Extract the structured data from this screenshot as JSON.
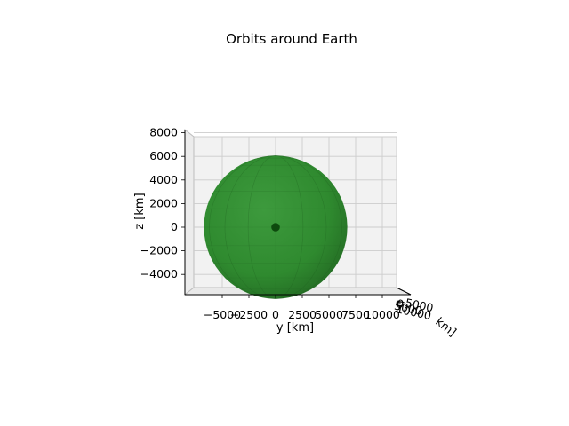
{
  "chart_data": {
    "type": "3d-surface",
    "title": "Orbits around Earth",
    "xlabel": "x [km]",
    "xlabel_visible": "km]",
    "ylabel": "y [km]",
    "zlabel": "z [km]",
    "y_ticks": [
      -5000,
      -2500,
      0,
      2500,
      5000,
      7500,
      10000
    ],
    "y_tick_labels": [
      "−5000",
      "−2500",
      "0",
      "2500",
      "5000",
      "7500",
      "10000"
    ],
    "z_ticks": [
      -4000,
      -2000,
      0,
      2000,
      4000,
      6000,
      8000
    ],
    "z_tick_labels": [
      "−4000",
      "−2000",
      "0",
      "2000",
      "4000",
      "6000",
      "8000"
    ],
    "x_tick_labels": [
      "−5000",
      "0",
      "5000",
      "10000"
    ],
    "ylim": [
      -7000,
      11000
    ],
    "zlim": [
      -5400,
      8500
    ],
    "earth": {
      "radius_km": 6371,
      "center": [
        0,
        0,
        0
      ],
      "color": "#2f8f2f"
    },
    "center_marker": {
      "position": [
        0,
        0,
        0
      ],
      "color": "#0d4a0d"
    },
    "grid": true,
    "pane_color": "#f2f2f2"
  }
}
